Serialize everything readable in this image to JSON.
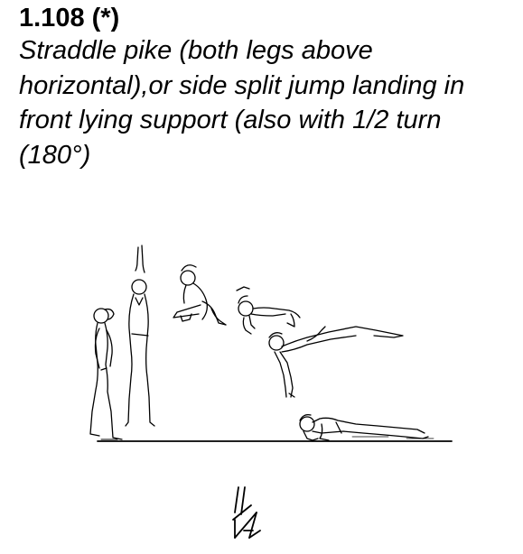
{
  "element": {
    "code": "1.108 (*)",
    "description": "Straddle pike (both legs above horizontal),or side split jump landing in front lying support (also with 1/2 turn (180°)"
  },
  "illustration": {
    "figure_icon": "gymnast-sequence-drawing",
    "symbol_icon": "jump-to-push-up-symbol",
    "ink_color": "#000000"
  }
}
